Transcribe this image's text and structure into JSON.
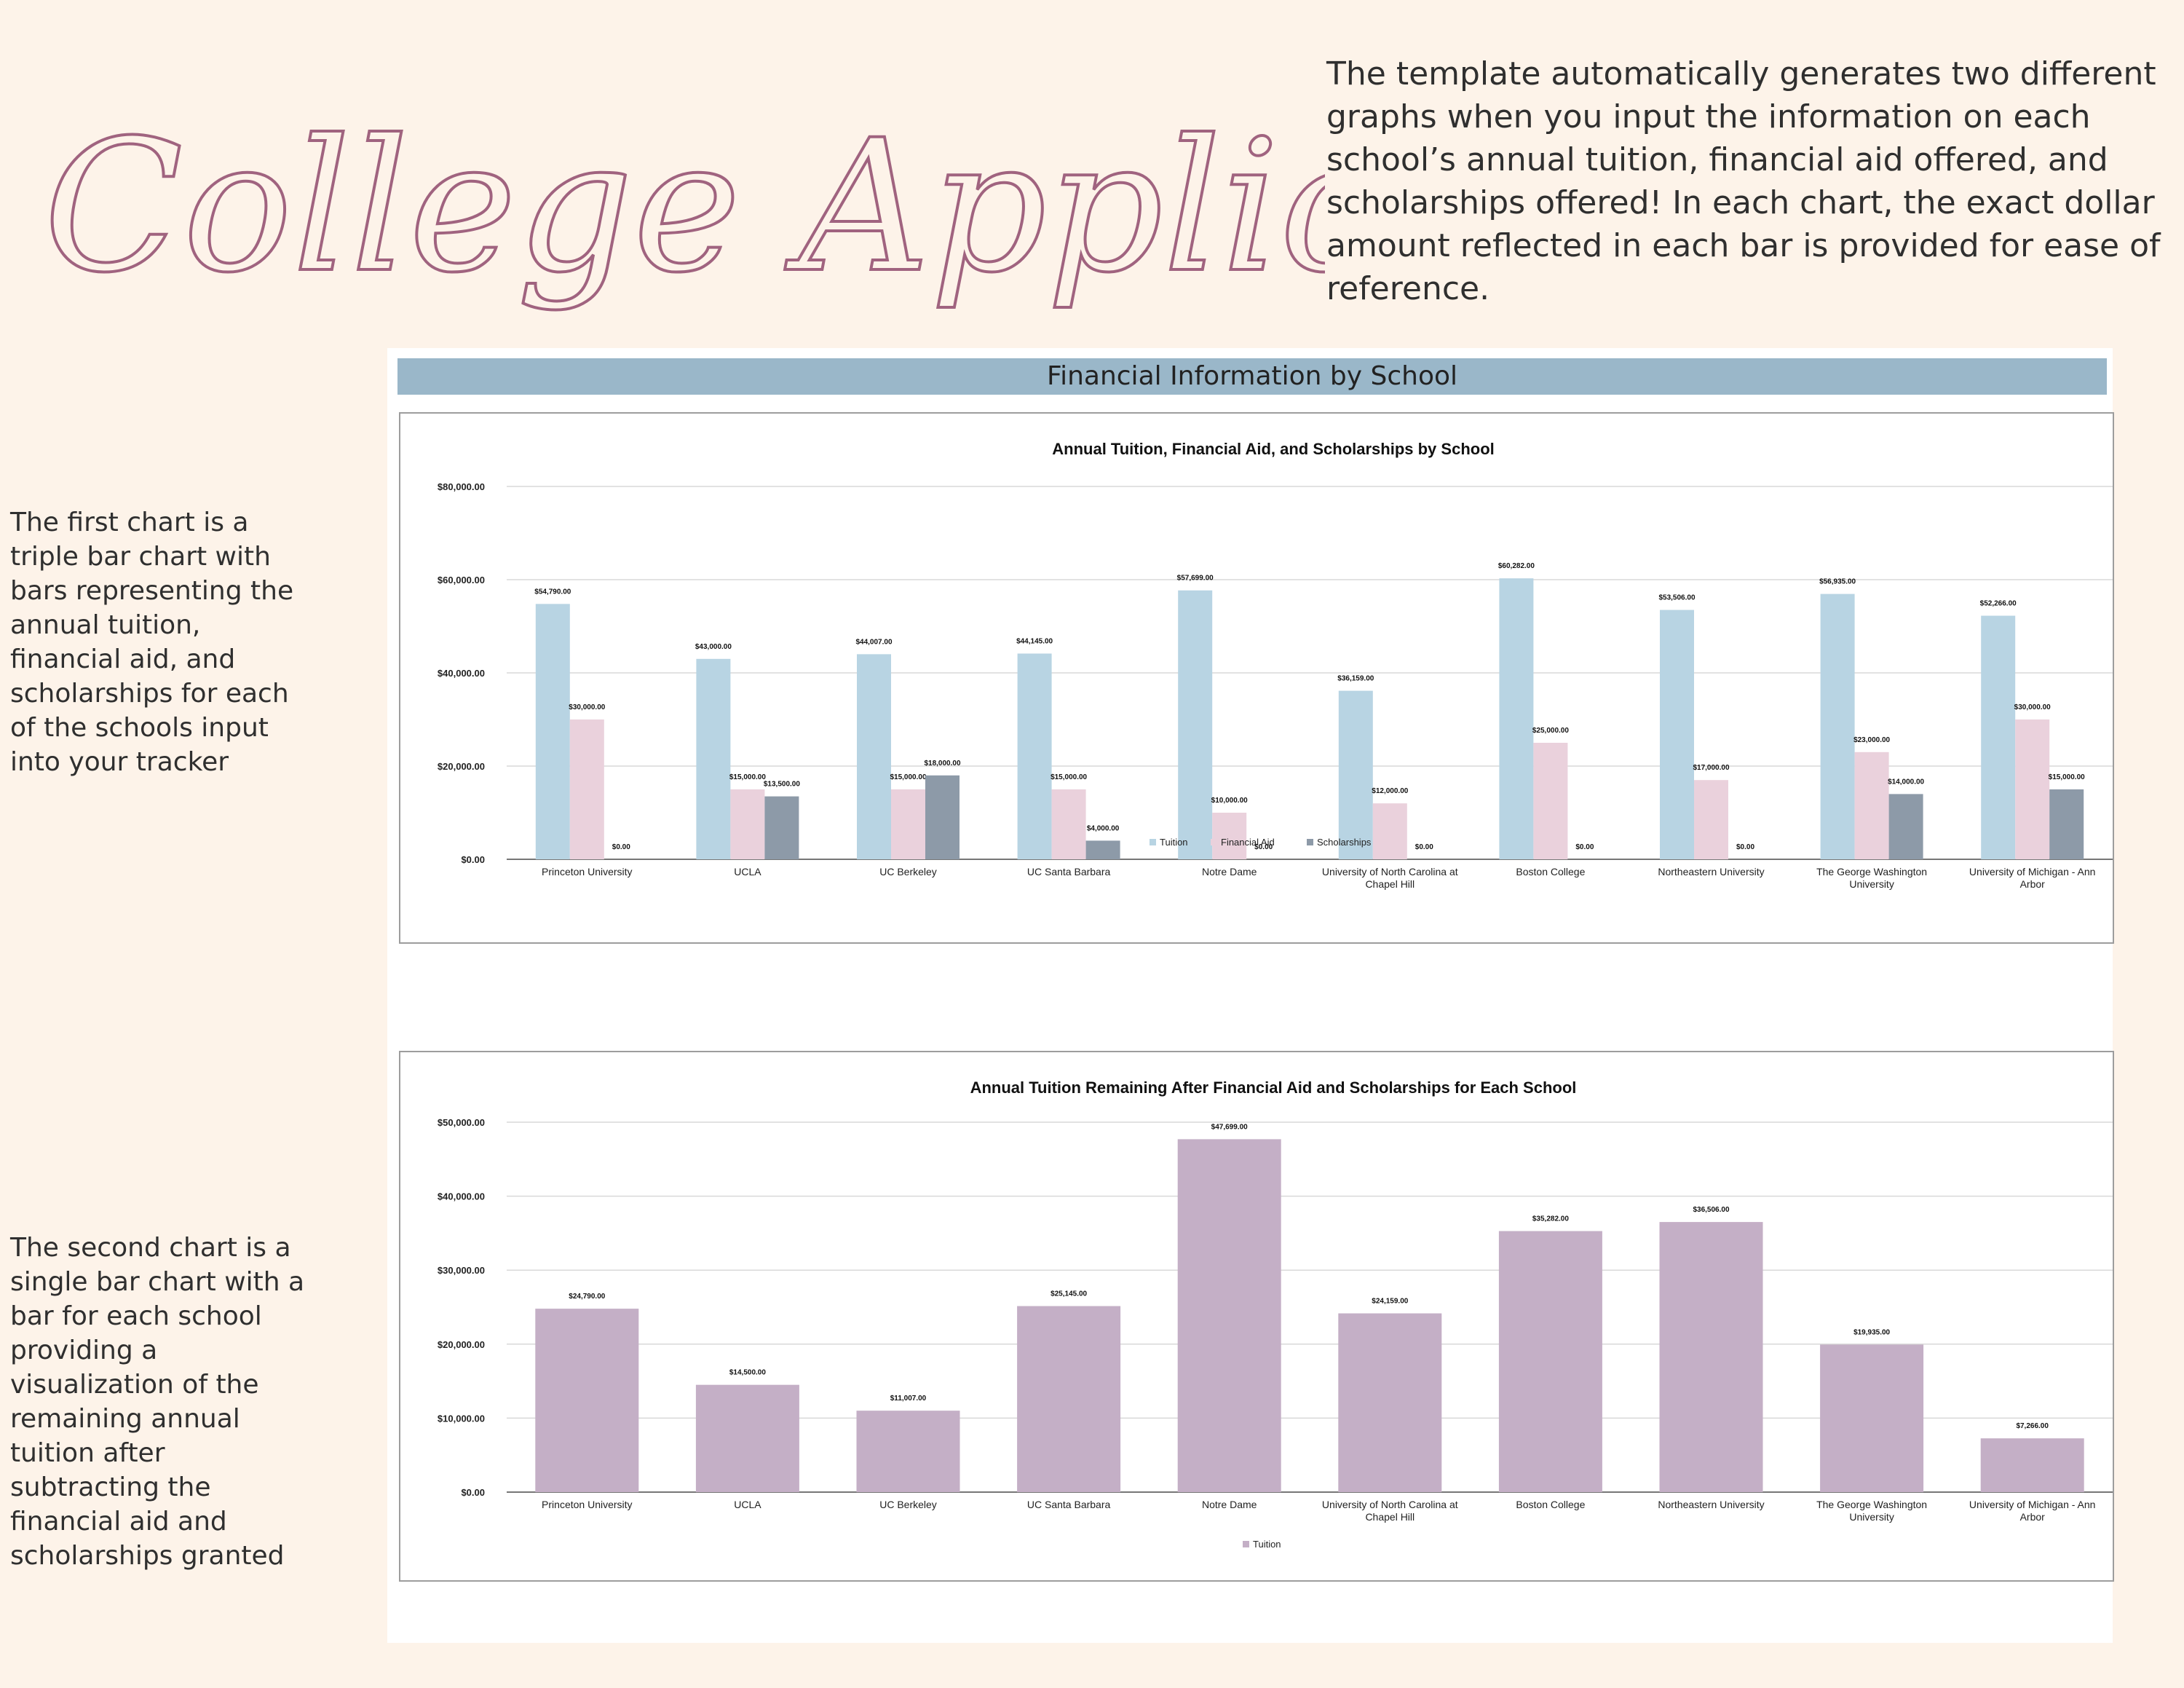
{
  "page_title": "College Application Tracker",
  "intro_text": "The template automatically generates two different graphs when you input the information on each school’s annual tuition, financial aid offered, and scholarships offered!  In each chart, the exact dollar amount reflected in each bar is provided for ease of reference.",
  "notes": {
    "first": "The first chart is a triple bar chart with bars representing the annual tuition, financial aid, and scholarships for each of the schools input into your tracker",
    "second": "The second chart is a single bar chart with a bar for each school providing a visualization of the remaining annual tuition after subtracting the financial aid and scholarships granted"
  },
  "section_header": "Financial Information by School",
  "colors": {
    "tuition": "#b8d4e3",
    "financial_aid": "#ead1dc",
    "scholarships": "#8d9aa8",
    "remaining": "#c4afc6",
    "title_script": "#a0637f",
    "header_bar": "#9ab7c9"
  },
  "chart_data": [
    {
      "type": "bar",
      "title": "Annual Tuition, Financial Aid, and Scholarships by School",
      "categories": [
        "Princeton University",
        "UCLA",
        "UC Berkeley",
        "UC Santa Barbara",
        "Notre Dame",
        "University of North Carolina at Chapel Hill",
        "Boston College",
        "Northeastern University",
        "The George Washington University",
        "University of Michigan - Ann Arbor"
      ],
      "category_lines": [
        [
          "Princeton University"
        ],
        [
          "UCLA"
        ],
        [
          "UC Berkeley"
        ],
        [
          "UC Santa Barbara"
        ],
        [
          "Notre Dame"
        ],
        [
          "University of North Carolina at",
          "Chapel Hill"
        ],
        [
          "Boston College"
        ],
        [
          "Northeastern University"
        ],
        [
          "The George Washington",
          "University"
        ],
        [
          "University of Michigan - Ann",
          "Arbor"
        ]
      ],
      "series": [
        {
          "name": "Tuition",
          "color": "#b8d4e3",
          "values": [
            54790,
            43000,
            44007,
            44145,
            57699,
            36159,
            60282,
            53506,
            56935,
            52266
          ],
          "labels": [
            "$54,790.00",
            "$43,000.00",
            "$44,007.00",
            "$44,145.00",
            "$57,699.00",
            "$36,159.00",
            "$60,282.00",
            "$53,506.00",
            "$56,935.00",
            "$52,266.00"
          ]
        },
        {
          "name": "Financial Aid",
          "color": "#ead1dc",
          "values": [
            30000,
            15000,
            15000,
            15000,
            10000,
            12000,
            25000,
            17000,
            23000,
            30000
          ],
          "labels": [
            "$30,000.00",
            "$15,000.00",
            "$15,000.00",
            "$15,000.00",
            "$10,000.00",
            "$12,000.00",
            "$25,000.00",
            "$17,000.00",
            "$23,000.00",
            "$30,000.00"
          ]
        },
        {
          "name": "Scholarships",
          "color": "#8d9aa8",
          "values": [
            0,
            13500,
            18000,
            4000,
            0,
            0,
            0,
            0,
            14000,
            15000
          ],
          "labels": [
            "$0.00",
            "$13,500.00",
            "$18,000.00",
            "$4,000.00",
            "$0.00",
            "$0.00",
            "$0.00",
            "$0.00",
            "$14,000.00",
            "$15,000.00"
          ]
        }
      ],
      "ylim": [
        0,
        80000
      ],
      "y_ticks": [
        0,
        20000,
        40000,
        60000,
        80000
      ],
      "y_tick_labels": [
        "$0.00",
        "$20,000.00",
        "$40,000.00",
        "$60,000.00",
        "$80,000.00"
      ],
      "grid": true,
      "legend": "bottom"
    },
    {
      "type": "bar",
      "title": "Annual Tuition Remaining After Financial Aid and Scholarships for Each School",
      "categories": [
        "Princeton University",
        "UCLA",
        "UC Berkeley",
        "UC Santa Barbara",
        "Notre Dame",
        "University of North Carolina at Chapel Hill",
        "Boston College",
        "Northeastern University",
        "The George Washington University",
        "University of Michigan - Ann Arbor"
      ],
      "category_lines": [
        [
          "Princeton University"
        ],
        [
          "UCLA"
        ],
        [
          "UC Berkeley"
        ],
        [
          "UC Santa Barbara"
        ],
        [
          "Notre Dame"
        ],
        [
          "University of North Carolina at",
          "Chapel Hill"
        ],
        [
          "Boston College"
        ],
        [
          "Northeastern University"
        ],
        [
          "The George Washington",
          "University"
        ],
        [
          "University of Michigan - Ann",
          "Arbor"
        ]
      ],
      "series": [
        {
          "name": "Tuition",
          "color": "#c4afc6",
          "values": [
            24790,
            14500,
            11007,
            25145,
            47699,
            24159,
            35282,
            36506,
            19935,
            7266
          ],
          "labels": [
            "$24,790.00",
            "$14,500.00",
            "$11,007.00",
            "$25,145.00",
            "$47,699.00",
            "$24,159.00",
            "$35,282.00",
            "$36,506.00",
            "$19,935.00",
            "$7,266.00"
          ]
        }
      ],
      "ylim": [
        0,
        50000
      ],
      "y_ticks": [
        0,
        10000,
        20000,
        30000,
        40000,
        50000
      ],
      "y_tick_labels": [
        "$0.00",
        "$10,000.00",
        "$20,000.00",
        "$30,000.00",
        "$40,000.00",
        "$50,000.00"
      ],
      "grid": true,
      "legend": "bottom"
    }
  ]
}
